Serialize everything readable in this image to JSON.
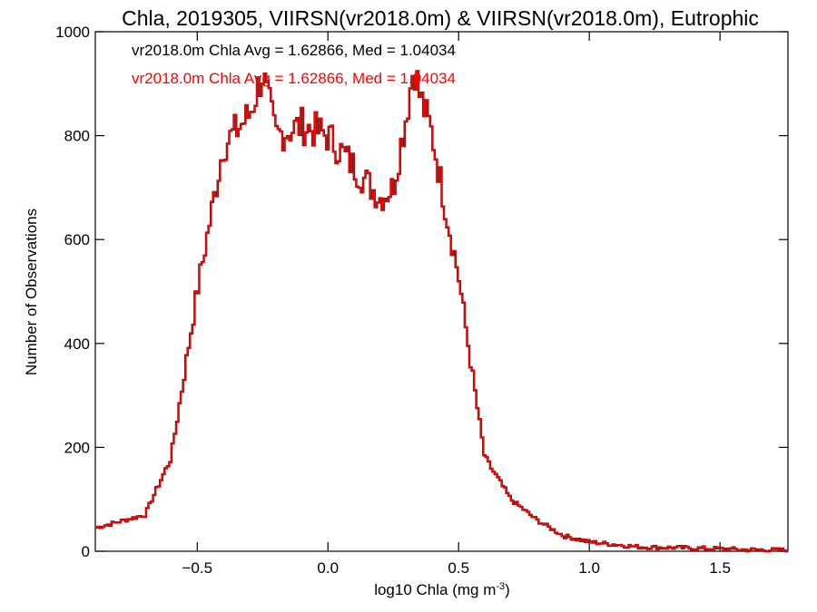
{
  "chart_data": {
    "type": "histogram",
    "title": "Chla, 2019305, VIIRSN(vr2018.0m) & VIIRSN(vr2018.0m), Eutrophic",
    "xlabel": "log10 Chla (mg m",
    "xlabel_sup": "-3",
    "xlabel_suffix": ")",
    "ylabel": "Number of Observations",
    "xlim": [
      -0.89,
      1.76
    ],
    "ylim": [
      0,
      1000
    ],
    "x_ticks": [
      -0.5,
      0.0,
      0.5,
      1.0,
      1.5
    ],
    "x_tick_labels": [
      "−0.5",
      "0.0",
      "0.5",
      "1.0",
      "1.5"
    ],
    "y_ticks": [
      0,
      200,
      400,
      600,
      800,
      1000
    ],
    "y_tick_labels": [
      "0",
      "200",
      "400",
      "600",
      "800",
      "1000"
    ],
    "grid": false,
    "annotations": [
      {
        "text": "vr2018.0m Chla Avg = 1.62866, Med = 1.04034",
        "color": "#000000"
      },
      {
        "text": "vr2018.0m Chla Avg = 1.62866, Med = 1.04034",
        "color": "#ff0000"
      }
    ],
    "series": [
      {
        "color": "#000000",
        "x": [
          -0.89,
          -0.7,
          -0.6,
          -0.5,
          -0.4,
          -0.3,
          -0.25,
          -0.2,
          -0.1,
          0.0,
          0.1,
          0.2,
          0.25,
          0.3,
          0.33,
          0.35,
          0.4,
          0.45,
          0.5,
          0.55,
          0.6,
          0.7,
          0.8,
          0.9,
          1.0,
          1.2,
          1.4,
          1.6,
          1.76
        ],
        "y": [
          45,
          70,
          180,
          500,
          780,
          840,
          920,
          800,
          820,
          800,
          740,
          680,
          700,
          840,
          940,
          880,
          800,
          660,
          530,
          350,
          180,
          100,
          60,
          30,
          18,
          8,
          6,
          3,
          2
        ]
      },
      {
        "color": "#ff0000",
        "x": [
          -0.89,
          -0.7,
          -0.6,
          -0.5,
          -0.4,
          -0.3,
          -0.25,
          -0.2,
          -0.1,
          0.0,
          0.1,
          0.2,
          0.25,
          0.3,
          0.33,
          0.35,
          0.4,
          0.45,
          0.5,
          0.55,
          0.6,
          0.7,
          0.8,
          0.9,
          1.0,
          1.2,
          1.4,
          1.6,
          1.76
        ],
        "y": [
          45,
          70,
          180,
          500,
          780,
          840,
          920,
          800,
          820,
          800,
          740,
          680,
          700,
          840,
          940,
          880,
          800,
          660,
          530,
          350,
          180,
          100,
          60,
          30,
          18,
          8,
          6,
          3,
          2
        ]
      }
    ]
  }
}
